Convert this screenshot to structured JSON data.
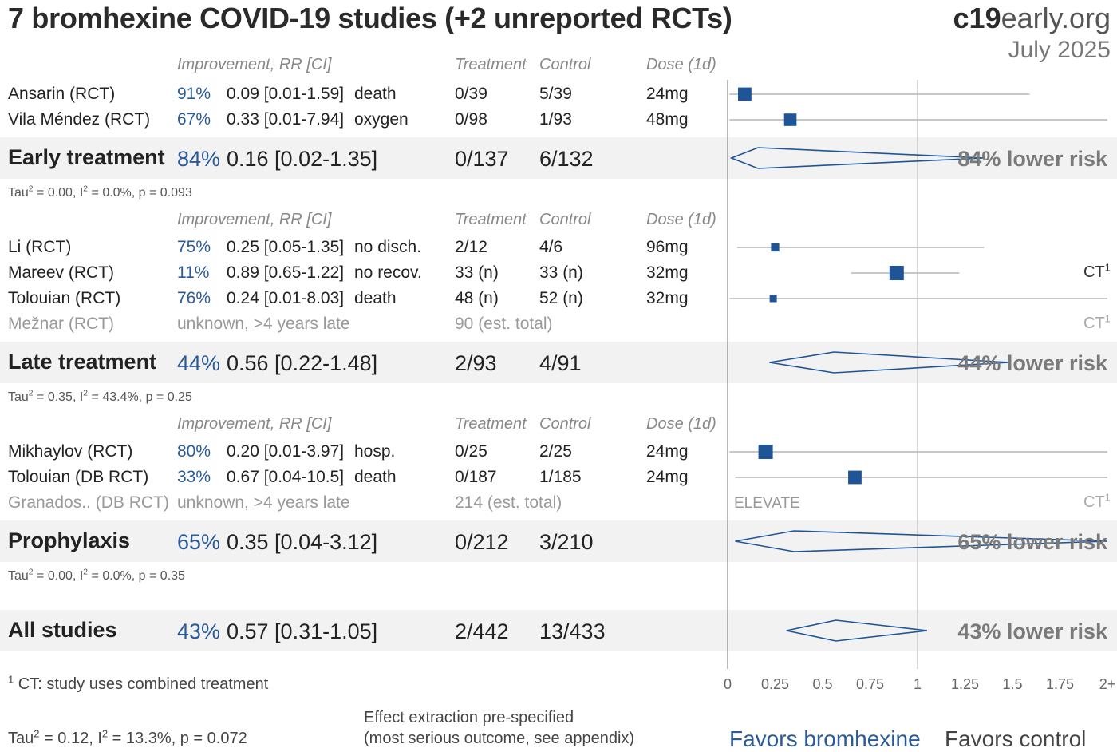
{
  "title": "7 bromhexine COVID-19 studies (+2 unreported RCTs)",
  "brand": {
    "bold": "c19",
    "rest": "early.org"
  },
  "date": "July 2025",
  "column_headers": {
    "improvement": "Improvement, RR [CI]",
    "treatment": "Treatment",
    "control": "Control",
    "dose": "Dose (1d)"
  },
  "groups": [
    {
      "studies": [
        {
          "name": "Ansarin (RCT)",
          "improvement": "91%",
          "rr": "0.09 [0.01-1.59]",
          "outcome": "death",
          "treatment": "0/39",
          "control": "5/39",
          "dose": "24mg",
          "ct": ""
        },
        {
          "name": "Vila Méndez (RCT)",
          "improvement": "67%",
          "rr": "0.33 [0.01-7.94]",
          "outcome": "oxygen",
          "treatment": "0/98",
          "control": "1/93",
          "dose": "48mg",
          "ct": ""
        }
      ],
      "summary": {
        "label": "Early treatment",
        "improvement": "84%",
        "rr": "0.16 [0.02-1.35]",
        "treatment": "0/137",
        "control": "6/132",
        "risk": "84% lower risk"
      },
      "stats": {
        "tau": "Tau",
        "tau_rest": " = 0.00, I",
        "i_rest": " = 0.0%, p = 0.093"
      }
    },
    {
      "studies": [
        {
          "name": "Li (RCT)",
          "improvement": "75%",
          "rr": "0.25 [0.05-1.35]",
          "outcome": "no disch.",
          "treatment": "2/12",
          "control": "4/6",
          "dose": "96mg",
          "ct": ""
        },
        {
          "name": "Mareev (RCT)",
          "improvement": "11%",
          "rr": "0.89 [0.65-1.22]",
          "outcome": "no recov.",
          "treatment": "33 (n)",
          "control": "33 (n)",
          "dose": "32mg",
          "ct": "CT"
        },
        {
          "name": "Tolouian (RCT)",
          "improvement": "76%",
          "rr": "0.24 [0.01-8.03]",
          "outcome": "death",
          "treatment": "48 (n)",
          "control": "52 (n)",
          "dose": "32mg",
          "ct": ""
        }
      ],
      "unreported": {
        "name": "Mežnar (RCT)",
        "note": "unknown, >4 years late",
        "total": "90 (est. total)",
        "ct": "CT",
        "label": ""
      },
      "summary": {
        "label": "Late treatment",
        "improvement": "44%",
        "rr": "0.56 [0.22-1.48]",
        "treatment": "2/93",
        "control": "4/91",
        "risk": "44% lower risk"
      },
      "stats": {
        "tau": "Tau",
        "tau_rest": " = 0.35, I",
        "i_rest": " = 43.4%, p = 0.25"
      }
    },
    {
      "studies": [
        {
          "name": "Mikhaylov (RCT)",
          "improvement": "80%",
          "rr": "0.20 [0.01-3.97]",
          "outcome": "hosp.",
          "treatment": "0/25",
          "control": "2/25",
          "dose": "24mg",
          "ct": ""
        },
        {
          "name": "Tolouian (DB RCT)",
          "improvement": "33%",
          "rr": "0.67 [0.04-10.5]",
          "outcome": "death",
          "treatment": "0/187",
          "control": "1/185",
          "dose": "24mg",
          "ct": ""
        }
      ],
      "unreported": {
        "name": "Granados.. (DB RCT)",
        "note": "unknown, >4 years late",
        "total": "214 (est. total)",
        "ct": "CT",
        "label": "ELEVATE"
      },
      "summary": {
        "label": "Prophylaxis",
        "improvement": "65%",
        "rr": "0.35 [0.04-3.12]",
        "treatment": "0/212",
        "control": "3/210",
        "risk": "65% lower risk"
      },
      "stats": {
        "tau": "Tau",
        "tau_rest": " = 0.00, I",
        "i_rest": " = 0.0%, p = 0.35"
      }
    }
  ],
  "all": {
    "label": "All studies",
    "improvement": "43%",
    "rr": "0.57 [0.31-1.05]",
    "treatment": "2/442",
    "control": "13/433",
    "risk": "43% lower risk"
  },
  "footnote": {
    "mark": "1",
    "text": " CT: study uses combined treatment"
  },
  "overall_stats": {
    "tau": "Tau",
    "tau_rest": " = 0.12, I",
    "i_rest": " = 13.3%, p = 0.072"
  },
  "extraction_note": [
    "Effect extraction pre-specified",
    "(most serious outcome, see appendix)"
  ],
  "favors": {
    "left": "Favors bromhexine",
    "right": "Favors control",
    "left_color": "#2a5a9a",
    "right_color": "#444444"
  },
  "ct_sup": "1",
  "chart_data": {
    "type": "forest",
    "x_ticks": [
      "0",
      "0.25",
      "0.5",
      "0.75",
      "1",
      "1.25",
      "1.5",
      "1.75",
      "2+"
    ],
    "xlim": [
      0,
      2
    ],
    "marker_color": "#1f5596",
    "studies": [
      {
        "name": "Ansarin (RCT)",
        "rr": 0.09,
        "lo": 0.01,
        "hi": 1.59,
        "weight": 0.9
      },
      {
        "name": "Vila Méndez (RCT)",
        "rr": 0.33,
        "lo": 0.01,
        "hi": 7.94,
        "weight": 0.8
      },
      {
        "name": "Li (RCT)",
        "rr": 0.25,
        "lo": 0.05,
        "hi": 1.35,
        "weight": 0.35
      },
      {
        "name": "Mareev (RCT)",
        "rr": 0.89,
        "lo": 0.65,
        "hi": 1.22,
        "weight": 1.0
      },
      {
        "name": "Tolouian (RCT)",
        "rr": 0.24,
        "lo": 0.01,
        "hi": 8.03,
        "weight": 0.25
      },
      {
        "name": "Mikhaylov (RCT)",
        "rr": 0.2,
        "lo": 0.01,
        "hi": 3.97,
        "weight": 1.0
      },
      {
        "name": "Tolouian (DB RCT)",
        "rr": 0.67,
        "lo": 0.04,
        "hi": 10.5,
        "weight": 0.9
      }
    ],
    "summaries": [
      {
        "name": "Early treatment",
        "rr": 0.16,
        "lo": 0.02,
        "hi": 1.35
      },
      {
        "name": "Late treatment",
        "rr": 0.56,
        "lo": 0.22,
        "hi": 1.48
      },
      {
        "name": "Prophylaxis",
        "rr": 0.35,
        "lo": 0.04,
        "hi": 3.12
      },
      {
        "name": "All studies",
        "rr": 0.57,
        "lo": 0.31,
        "hi": 1.05
      }
    ]
  }
}
